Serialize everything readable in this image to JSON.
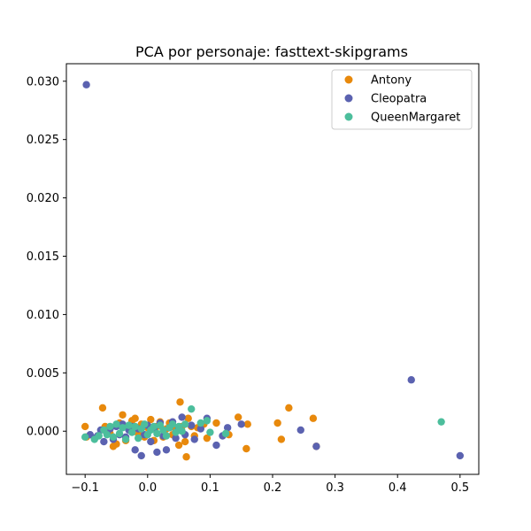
{
  "chart_data": {
    "type": "scatter",
    "title": "PCA por personaje: fasttext-skipgrams",
    "xlabel": "",
    "ylabel": "",
    "xlim": [
      -0.13,
      0.53
    ],
    "ylim": [
      -0.0037,
      0.0315
    ],
    "x_ticks": [
      -0.1,
      0.0,
      0.1,
      0.2,
      0.3,
      0.4,
      0.5
    ],
    "x_tick_labels": [
      "−0.1",
      "0.0",
      "0.1",
      "0.2",
      "0.3",
      "0.4",
      "0.5"
    ],
    "y_ticks": [
      0.0,
      0.005,
      0.01,
      0.015,
      0.02,
      0.025,
      0.03
    ],
    "y_tick_labels": [
      "0.000",
      "0.005",
      "0.010",
      "0.015",
      "0.020",
      "0.025",
      "0.030"
    ],
    "grid": false,
    "legend": "top-right",
    "series": [
      {
        "name": "Antony",
        "color": "#E8890C",
        "points": [
          [
            -0.1,
            0.0004
          ],
          [
            -0.098,
            -0.0005
          ],
          [
            -0.072,
            0.002
          ],
          [
            -0.068,
            0.0004
          ],
          [
            -0.06,
            -0.0002
          ],
          [
            -0.055,
            -0.0013
          ],
          [
            -0.05,
            -0.0011
          ],
          [
            -0.045,
            0.0007
          ],
          [
            -0.04,
            0.0014
          ],
          [
            -0.035,
            -0.0008
          ],
          [
            -0.03,
            0.0003
          ],
          [
            -0.025,
            0.0009
          ],
          [
            -0.02,
            0.0011
          ],
          [
            -0.015,
            -0.0002
          ],
          [
            -0.01,
            0.0006
          ],
          [
            -0.005,
            -0.0005
          ],
          [
            0.0,
            0.0003
          ],
          [
            0.005,
            0.001
          ],
          [
            0.01,
            -0.0008
          ],
          [
            0.015,
            0.0004
          ],
          [
            0.02,
            0.0008
          ],
          [
            0.025,
            -0.0005
          ],
          [
            0.03,
            0.0002
          ],
          [
            0.035,
            0.0007
          ],
          [
            0.04,
            -0.0003
          ],
          [
            0.045,
            0.0001
          ],
          [
            0.05,
            -0.0012
          ],
          [
            0.052,
            0.0025
          ],
          [
            0.055,
            0.0004
          ],
          [
            0.06,
            -0.0009
          ],
          [
            0.062,
            -0.0022
          ],
          [
            0.065,
            0.0011
          ],
          [
            0.07,
            0.0004
          ],
          [
            0.075,
            -0.0004
          ],
          [
            0.08,
            0.0003
          ],
          [
            0.09,
            0.0006
          ],
          [
            0.095,
            -0.0006
          ],
          [
            0.11,
            0.0007
          ],
          [
            0.13,
            -0.0003
          ],
          [
            0.145,
            0.0012
          ],
          [
            0.158,
            -0.0015
          ],
          [
            0.16,
            0.0006
          ],
          [
            0.208,
            0.0007
          ],
          [
            0.214,
            -0.0007
          ],
          [
            0.226,
            0.002
          ],
          [
            0.265,
            0.0011
          ],
          [
            0.27,
            -0.0013
          ]
        ]
      },
      {
        "name": "Cleopatra",
        "color": "#5B62B0",
        "points": [
          [
            -0.098,
            0.0297
          ],
          [
            -0.092,
            -0.0003
          ],
          [
            -0.085,
            -0.0006
          ],
          [
            -0.08,
            -0.0004
          ],
          [
            -0.075,
            0.0001
          ],
          [
            -0.07,
            -0.0009
          ],
          [
            -0.065,
            -0.0002
          ],
          [
            -0.06,
            0.0002
          ],
          [
            -0.055,
            -0.0007
          ],
          [
            -0.05,
            0.0004
          ],
          [
            -0.045,
            -0.0003
          ],
          [
            -0.04,
            0.0006
          ],
          [
            -0.035,
            -0.0005
          ],
          [
            -0.03,
            0.0001
          ],
          [
            -0.025,
            0.0004
          ],
          [
            -0.02,
            -0.0016
          ],
          [
            -0.015,
            0.0002
          ],
          [
            -0.01,
            -0.0021
          ],
          [
            -0.005,
            -0.0003
          ],
          [
            0.0,
            0.0005
          ],
          [
            0.005,
            -0.0009
          ],
          [
            0.01,
            0.0002
          ],
          [
            0.015,
            -0.0018
          ],
          [
            0.02,
            0.0007
          ],
          [
            0.025,
            -0.0004
          ],
          [
            0.03,
            -0.0016
          ],
          [
            0.035,
            0.0003
          ],
          [
            0.04,
            0.0008
          ],
          [
            0.045,
            -0.0006
          ],
          [
            0.05,
            0.0003
          ],
          [
            0.055,
            0.0012
          ],
          [
            0.06,
            -0.0003
          ],
          [
            0.07,
            0.0005
          ],
          [
            0.075,
            -0.0007
          ],
          [
            0.085,
            0.0002
          ],
          [
            0.095,
            0.0011
          ],
          [
            0.11,
            -0.0012
          ],
          [
            0.12,
            -0.0004
          ],
          [
            0.128,
            0.0003
          ],
          [
            0.15,
            0.0006
          ],
          [
            0.245,
            0.0001
          ],
          [
            0.27,
            -0.0013
          ],
          [
            0.422,
            0.0044
          ],
          [
            0.5,
            -0.0021
          ]
        ]
      },
      {
        "name": "QueenMargaret",
        "color": "#4CBE9C",
        "points": [
          [
            -0.1,
            -0.0005
          ],
          [
            -0.085,
            -0.0007
          ],
          [
            -0.078,
            -0.0004
          ],
          [
            -0.07,
            0.0001
          ],
          [
            -0.065,
            -0.0003
          ],
          [
            -0.06,
            0.0004
          ],
          [
            -0.055,
            -0.0005
          ],
          [
            -0.05,
            0.0006
          ],
          [
            -0.045,
            -0.0002
          ],
          [
            -0.04,
            0.0003
          ],
          [
            -0.035,
            -0.0007
          ],
          [
            -0.03,
            0.0005
          ],
          [
            -0.025,
            -0.0001
          ],
          [
            -0.02,
            0.0004
          ],
          [
            -0.015,
            -0.0006
          ],
          [
            -0.01,
            0.0002
          ],
          [
            -0.005,
            0.0006
          ],
          [
            0.0,
            -0.0003
          ],
          [
            0.005,
            0.0001
          ],
          [
            0.01,
            0.0004
          ],
          [
            0.015,
            -0.0002
          ],
          [
            0.02,
            0.0005
          ],
          [
            0.025,
            0.0001
          ],
          [
            0.03,
            -0.0004
          ],
          [
            0.035,
            0.0003
          ],
          [
            0.04,
            0.0006
          ],
          [
            0.045,
            -0.0001
          ],
          [
            0.05,
            0.0004
          ],
          [
            0.055,
            0.0
          ],
          [
            0.06,
            0.0006
          ],
          [
            0.07,
            0.0019
          ],
          [
            0.085,
            0.0007
          ],
          [
            0.095,
            0.0009
          ],
          [
            0.1,
            -0.0001
          ],
          [
            0.125,
            -0.0002
          ],
          [
            0.47,
            0.0008
          ]
        ]
      }
    ]
  }
}
